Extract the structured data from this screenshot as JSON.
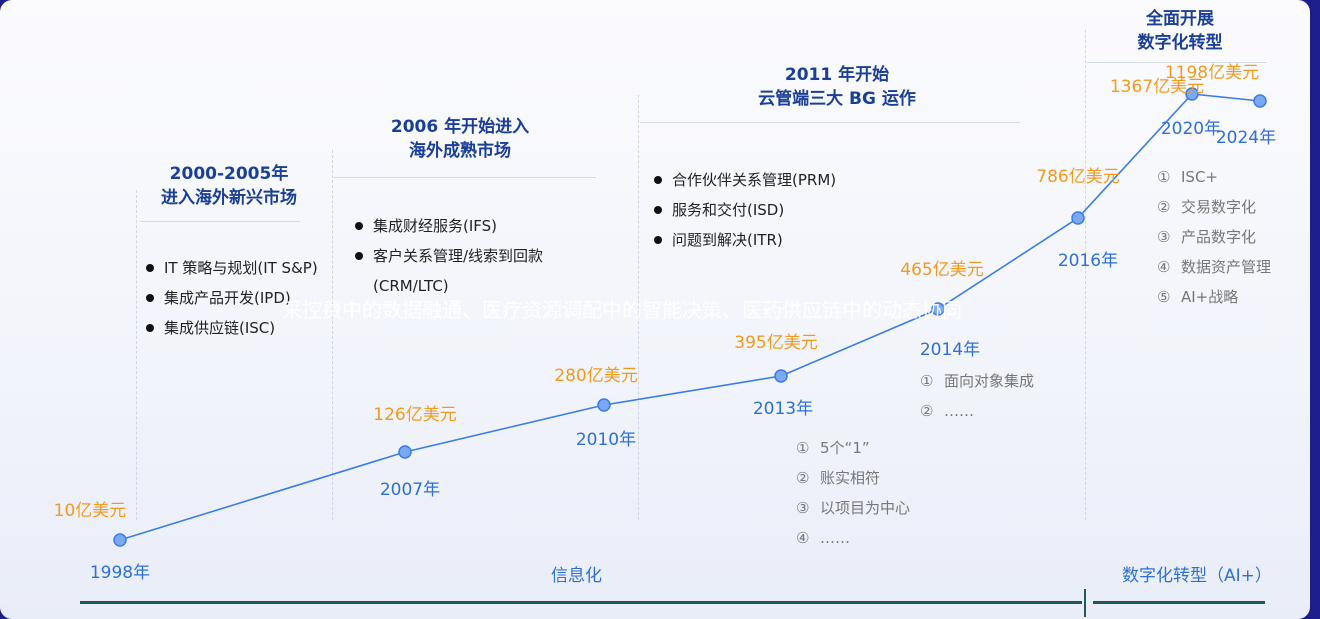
{
  "phases": [
    {
      "title_line1": "2000-2005年",
      "title_line2": "进入海外新兴市场",
      "items": [
        "IT 策略与规划(IT S&P)",
        "集成产品开发(IPD)",
        "集成供应链(ISC)"
      ]
    },
    {
      "title_line1": "2006 年开始进入",
      "title_line2": "海外成熟市场",
      "items": [
        "集成财经服务(IFS)",
        "客户关系管理/线索到回款",
        "(CRM/LTC)"
      ]
    },
    {
      "title_line1": "2011 年开始",
      "title_line2": "云管端三大 BG 运作",
      "items": [
        "合作伙伴关系管理(PRM)",
        "服务和交付(ISD)",
        "问题到解决(ITR)"
      ]
    },
    {
      "title_line1": "全面开展",
      "title_line2": "数字化转型"
    }
  ],
  "notes_2013": {
    "markers": [
      "①",
      "②",
      "③",
      "④"
    ],
    "items": [
      "5个“1”",
      "账实相符",
      "以项目为中心",
      "……"
    ]
  },
  "notes_2014": {
    "markers": [
      "①",
      "②"
    ],
    "items": [
      "面向对象集成",
      "……"
    ]
  },
  "notes_2016": {
    "markers": [
      "①",
      "②",
      "③",
      "④",
      "⑤"
    ],
    "items": [
      "ISC+",
      "交易数字化",
      "产品数字化",
      "数据资产管理",
      "AI+战略"
    ]
  },
  "overlay_text": "采控费中的数据融通、医疗资源调配中的智能决策、医药供应链中的动态协同",
  "stages": {
    "info": "信息化",
    "digital": "数字化转型（AI+）"
  },
  "colors": {
    "line": "#3a7de8",
    "point_fill": "#7aa8f2",
    "value_label": "#f39a1e",
    "year_label": "#2d70d8",
    "phase_title": "#1a3f97",
    "baseline": "#1f5a57"
  },
  "chart_data": {
    "type": "line",
    "x": [
      "1998年",
      "2007年",
      "2010年",
      "2013年",
      "2014年",
      "2016年",
      "2020年",
      "2024年"
    ],
    "values": [
      10,
      126,
      280,
      395,
      465,
      786,
      1367,
      1198
    ],
    "value_labels": [
      "10亿美元",
      "126亿美元",
      "280亿美元",
      "395亿美元",
      "465亿美元",
      "786亿美元",
      "1367亿美元",
      "1198亿美元"
    ],
    "unit": "亿美元"
  }
}
